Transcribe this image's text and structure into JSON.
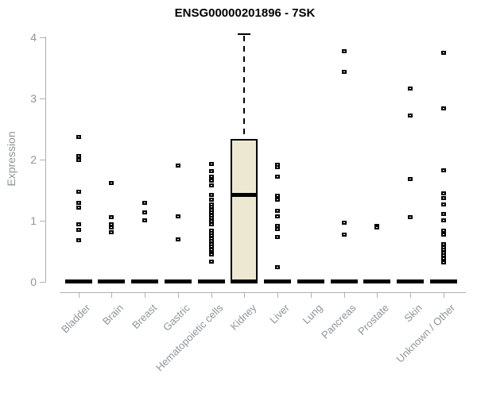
{
  "chart_data": {
    "type": "boxplot",
    "title": "ENSG00000201896 - 7SK",
    "ylabel": "Expression",
    "xlabel": "",
    "ylim": [
      0,
      4
    ],
    "yticks": [
      "0",
      "1",
      "2",
      "3",
      "4"
    ],
    "grid": false,
    "legend": false,
    "categories": [
      "Bladder",
      "Brain",
      "Breast",
      "Gastric",
      "Hematopoietic cells",
      "Kidney",
      "Liver",
      "Lung",
      "Pancreas",
      "Prostate",
      "Skin",
      "Unknown / Other"
    ],
    "series": [
      {
        "name": "Bladder",
        "box": {
          "low": 0,
          "q1": 0,
          "median": 0,
          "q3": 0,
          "high": 0
        },
        "points": [
          2.37,
          2.05,
          1.99,
          1.47,
          1.29,
          1.21,
          0.93,
          0.84,
          0.67
        ]
      },
      {
        "name": "Brain",
        "box": {
          "low": 0,
          "q1": 0,
          "median": 0,
          "q3": 0,
          "high": 0
        },
        "points": [
          1.61,
          1.05,
          0.94,
          0.88,
          0.81
        ]
      },
      {
        "name": "Breast",
        "box": {
          "low": 0,
          "q1": 0,
          "median": 0,
          "q3": 0,
          "high": 0
        },
        "points": [
          1.28,
          1.13,
          1.0
        ]
      },
      {
        "name": "Gastric",
        "box": {
          "low": 0,
          "q1": 0,
          "median": 0,
          "q3": 0,
          "high": 0
        },
        "points": [
          1.89,
          1.06,
          0.69
        ]
      },
      {
        "name": "Hematopoietic cells",
        "box": {
          "low": 0,
          "q1": 0,
          "median": 0,
          "q3": 0,
          "high": 0
        },
        "points": [
          1.92,
          1.81,
          1.71,
          1.65,
          1.57,
          1.42,
          1.34,
          1.26,
          1.22,
          1.17,
          1.13,
          1.08,
          1.04,
          0.99,
          0.94,
          0.83,
          0.79,
          0.75,
          0.7,
          0.66,
          0.61,
          0.57,
          0.52,
          0.47,
          0.44,
          0.33
        ]
      },
      {
        "name": "Kidney",
        "box": {
          "low": 0,
          "q1": 0,
          "median": 1.42,
          "q3": 2.33,
          "high": 4.05
        },
        "points": []
      },
      {
        "name": "Liver",
        "box": {
          "low": 0,
          "q1": 0,
          "median": 0,
          "q3": 0,
          "high": 0
        },
        "points": [
          1.91,
          1.87,
          1.72,
          1.4,
          1.34,
          1.16,
          1.07,
          0.91,
          0.86,
          0.73,
          0.23
        ]
      },
      {
        "name": "Lung",
        "box": {
          "low": 0,
          "q1": 0,
          "median": 0,
          "q3": 0,
          "high": 0
        },
        "points": []
      },
      {
        "name": "Pancreas",
        "box": {
          "low": 0,
          "q1": 0,
          "median": 0,
          "q3": 0,
          "high": 0
        },
        "points": [
          3.76,
          3.43,
          0.96,
          0.77
        ]
      },
      {
        "name": "Prostate",
        "box": {
          "low": 0,
          "q1": 0,
          "median": 0,
          "q3": 0,
          "high": 0
        },
        "points": [
          0.91,
          0.88
        ]
      },
      {
        "name": "Skin",
        "box": {
          "low": 0,
          "q1": 0,
          "median": 0,
          "q3": 0,
          "high": 0
        },
        "points": [
          3.16,
          2.72,
          1.68,
          1.05
        ]
      },
      {
        "name": "Unknown / Other",
        "box": {
          "low": 0,
          "q1": 0,
          "median": 0,
          "q3": 0,
          "high": 0
        },
        "points": [
          3.74,
          2.83,
          1.82,
          1.44,
          1.36,
          1.26,
          1.11,
          1.0,
          0.83,
          0.77,
          0.61,
          0.56,
          0.52,
          0.47,
          0.43,
          0.38,
          0.31
        ]
      }
    ],
    "colors": {
      "box_fill": "#EDE8D1",
      "line": "#000000",
      "axis": "#B0B0B0",
      "tick_label": "#8D959B",
      "title": "#000000",
      "background": "#FFFFFF"
    }
  }
}
